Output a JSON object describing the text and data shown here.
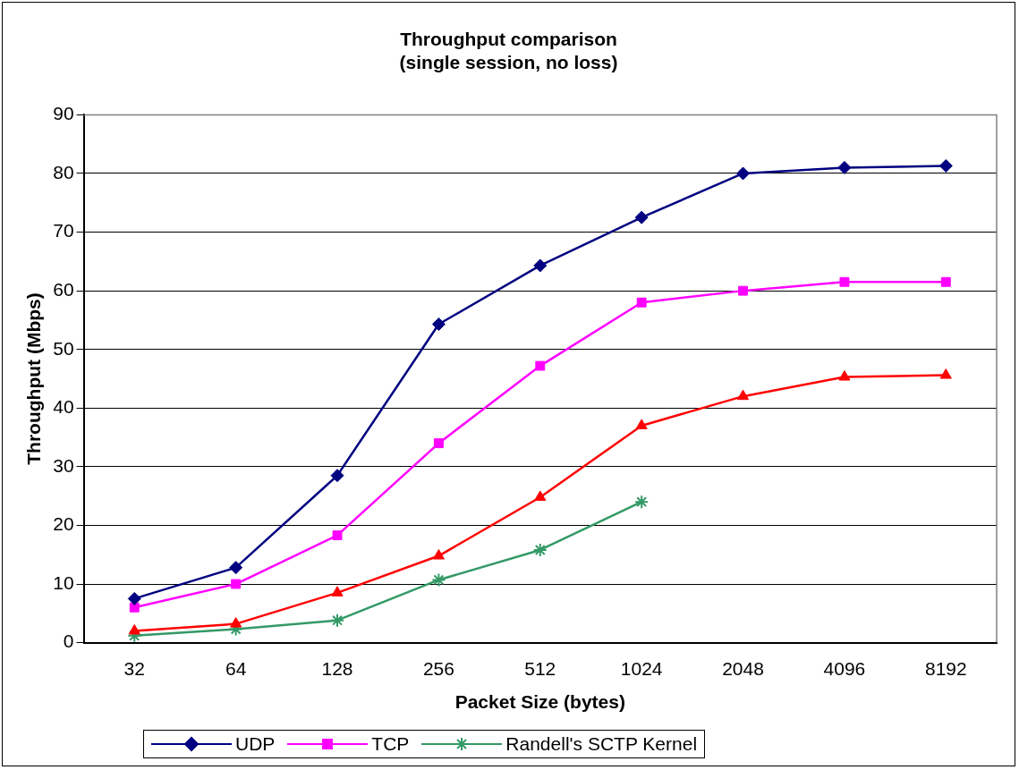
{
  "chart_data": {
    "type": "line",
    "title": "Throughput comparison\n(single session, no loss)",
    "xlabel": "Packet Size (bytes)",
    "ylabel": "Throughput (Mbps)",
    "categories": [
      "32",
      "64",
      "128",
      "256",
      "512",
      "1024",
      "2048",
      "4096",
      "8192"
    ],
    "ylim": [
      0,
      90
    ],
    "yticks": [
      0,
      10,
      20,
      30,
      40,
      50,
      60,
      70,
      80,
      90
    ],
    "grid": "y",
    "legend": "bottom",
    "line_style": "solid",
    "series": [
      {
        "name": "UDP",
        "color": "#000080",
        "marker": "diamond",
        "values": [
          7.5,
          12.8,
          28.5,
          54.3,
          64.3,
          72.5,
          80,
          81,
          81.3
        ]
      },
      {
        "name": "TCP",
        "color": "#ff00ff",
        "marker": "square",
        "values": [
          6,
          10,
          18.3,
          34,
          47.2,
          58,
          60,
          61.5,
          61.5
        ]
      },
      {
        "color": "#ff0000",
        "marker": "triangle",
        "values": [
          2,
          3.2,
          8.5,
          14.8,
          24.8,
          37,
          42,
          45.3,
          45.6
        ]
      },
      {
        "name": "Randell's SCTP Kernel",
        "color": "#339966",
        "marker": "cross",
        "values": [
          1.2,
          2.3,
          3.8,
          10.7,
          15.8,
          24,
          null,
          null,
          null
        ]
      }
    ]
  }
}
